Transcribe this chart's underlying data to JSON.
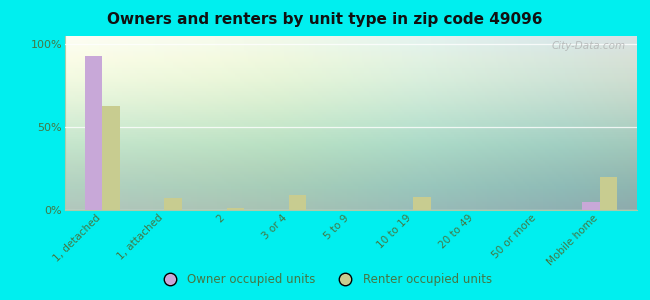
{
  "title": "Owners and renters by unit type in zip code 49096",
  "categories": [
    "1, detached",
    "1, attached",
    "2",
    "3 or 4",
    "5 to 9",
    "10 to 19",
    "20 to 49",
    "50 or more",
    "Mobile home"
  ],
  "owner_values": [
    93,
    0,
    0,
    0,
    0,
    0,
    0,
    0,
    5
  ],
  "renter_values": [
    63,
    7,
    1,
    9,
    0,
    8,
    0,
    0,
    20
  ],
  "owner_color": "#c8a8d8",
  "renter_color": "#c8cc90",
  "outer_bg": "#00efef",
  "plot_bg_color": "#e8f0d8",
  "ylabel_ticks": [
    "0%",
    "50%",
    "100%"
  ],
  "ytick_vals": [
    0,
    50,
    100
  ],
  "legend_owner": "Owner occupied units",
  "legend_renter": "Renter occupied units",
  "watermark": "City-Data.com",
  "bar_width": 0.28,
  "tick_color": "#447744",
  "title_color": "#111111"
}
